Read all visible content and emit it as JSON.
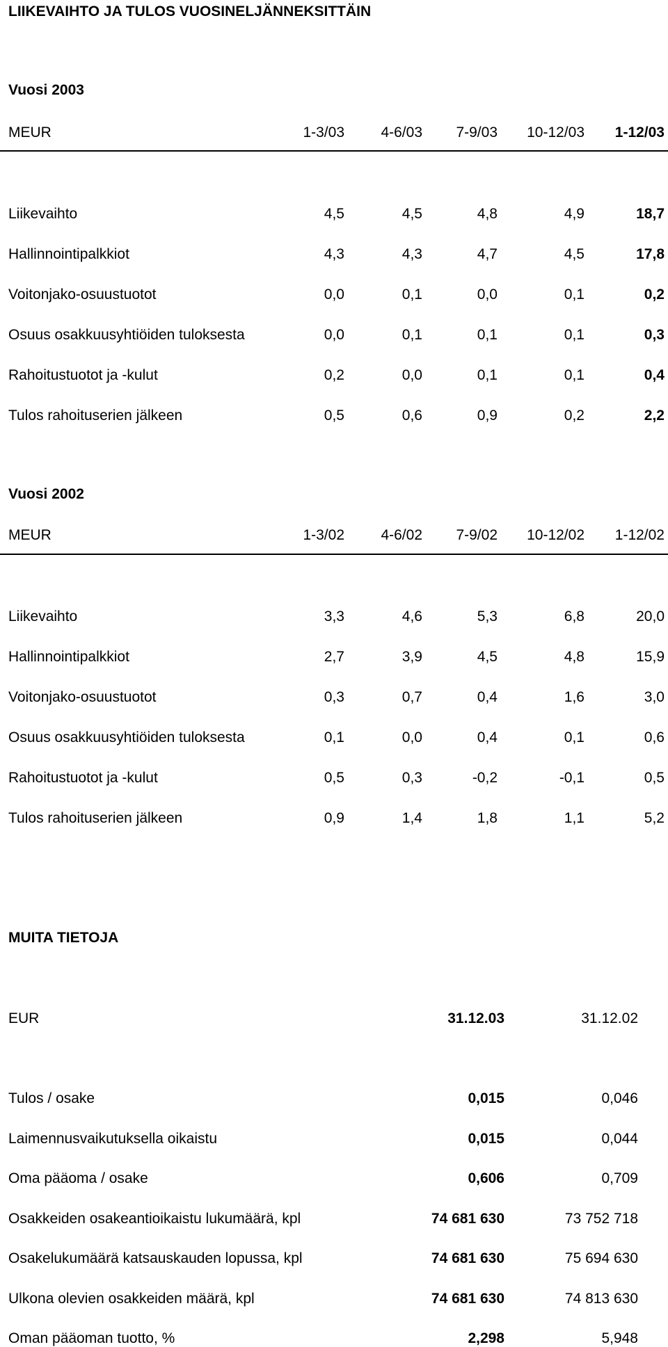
{
  "title": "LIIKEVAIHTO JA TULOS VUOSINELJÄNNEKSITTÄIN",
  "year2003": {
    "heading": "Vuosi 2003",
    "unit": "MEUR",
    "columns": [
      "1-3/03",
      "4-6/03",
      "7-9/03",
      "10-12/03",
      "1-12/03"
    ],
    "rows": [
      {
        "label": "Liikevaihto",
        "values": [
          "4,5",
          "4,5",
          "4,8",
          "4,9",
          "18,7"
        ]
      },
      {
        "label": "Hallinnointipalkkiot",
        "values": [
          "4,3",
          "4,3",
          "4,7",
          "4,5",
          "17,8"
        ]
      },
      {
        "label": "Voitonjako-osuustuotot",
        "values": [
          "0,0",
          "0,1",
          "0,0",
          "0,1",
          "0,2"
        ]
      },
      {
        "label": "Osuus osakkuusyhtiöiden tuloksesta",
        "values": [
          "0,0",
          "0,1",
          "0,1",
          "0,1",
          "0,3"
        ]
      },
      {
        "label": "Rahoitustuotot ja -kulut",
        "values": [
          "0,2",
          "0,0",
          "0,1",
          "0,1",
          "0,4"
        ]
      },
      {
        "label": "Tulos rahoituserien jälkeen",
        "values": [
          "0,5",
          "0,6",
          "0,9",
          "0,2",
          "2,2"
        ]
      }
    ]
  },
  "year2002": {
    "heading": "Vuosi 2002",
    "unit": "MEUR",
    "columns": [
      "1-3/02",
      "4-6/02",
      "7-9/02",
      "10-12/02",
      "1-12/02"
    ],
    "rows": [
      {
        "label": "Liikevaihto",
        "values": [
          "3,3",
          "4,6",
          "5,3",
          "6,8",
          "20,0"
        ]
      },
      {
        "label": "Hallinnointipalkkiot",
        "values": [
          "2,7",
          "3,9",
          "4,5",
          "4,8",
          "15,9"
        ]
      },
      {
        "label": "Voitonjako-osuustuotot",
        "values": [
          "0,3",
          "0,7",
          "0,4",
          "1,6",
          "3,0"
        ]
      },
      {
        "label": "Osuus osakkuusyhtiöiden tuloksesta",
        "values": [
          "0,1",
          "0,0",
          "0,4",
          "0,1",
          "0,6"
        ]
      },
      {
        "label": "Rahoitustuotot ja -kulut",
        "values": [
          "0,5",
          "0,3",
          "-0,2",
          "-0,1",
          "0,5"
        ]
      },
      {
        "label": "Tulos rahoituserien jälkeen",
        "values": [
          "0,9",
          "1,4",
          "1,8",
          "1,1",
          "5,2"
        ]
      }
    ]
  },
  "other": {
    "heading": "MUITA TIETOJA",
    "unit": "EUR",
    "columns": [
      "31.12.03",
      "31.12.02"
    ],
    "rows": [
      {
        "label": "Tulos / osake",
        "values": [
          "0,015",
          "0,046"
        ]
      },
      {
        "label": "Laimennusvaikutuksella oikaistu",
        "values": [
          "0,015",
          "0,044"
        ]
      },
      {
        "label": "Oma pääoma / osake",
        "values": [
          "0,606",
          "0,709"
        ]
      },
      {
        "label": "Osakkeiden osakeantioikaistu lukumäärä, kpl",
        "values": [
          "74 681 630",
          "73 752 718"
        ]
      },
      {
        "label": "Osakelukumäärä katsauskauden lopussa, kpl",
        "values": [
          "74 681 630",
          "75 694 630"
        ]
      },
      {
        "label": "Ulkona olevien osakkeiden määrä, kpl",
        "values": [
          "74 681 630",
          "74 813 630"
        ]
      },
      {
        "label": "Oman pääoman tuotto, %",
        "values": [
          "2,298",
          "5,948"
        ]
      }
    ]
  }
}
